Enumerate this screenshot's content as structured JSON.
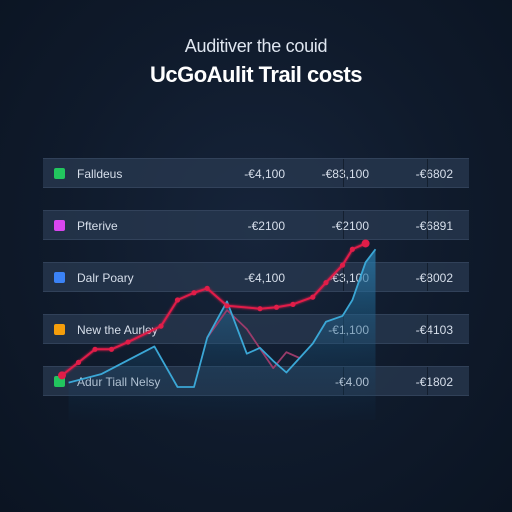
{
  "header": {
    "subtitle": "Auditiver the couid",
    "title": "UcGoAulit Trail costs"
  },
  "table": {
    "rows": [
      {
        "label": "Falldeus",
        "v1": "-€4,100",
        "v2": "-€83,100",
        "v3": "-€6802",
        "icon_color": "#22c55e"
      },
      {
        "label": "Pfterive",
        "v1": "-€2100",
        "v2": "-€2100",
        "v3": "-€6891",
        "icon_color": "#d946ef"
      },
      {
        "label": "Dalr Poary",
        "v1": "-€4,100",
        "v2": "-€3,100",
        "v3": "-€8002",
        "icon_color": "#3b82f6"
      },
      {
        "label": "New the Aurley",
        "v1": "",
        "v2": "-€1,100",
        "v3": "-€4103",
        "icon_color": "#f59e0b"
      },
      {
        "label": "Adur Tiall Nelsy",
        "v1": "",
        "v2": "-€4.00",
        "v3": "-€1802",
        "icon_color": "#22c55e"
      }
    ]
  },
  "chart_data": {
    "type": "line",
    "title": "",
    "xlabel": "",
    "ylabel": "",
    "ylim": [
      0,
      100
    ],
    "series": [
      {
        "color": "#e11d48",
        "values": [
          [
            0,
            8
          ],
          [
            5,
            17
          ],
          [
            10,
            26
          ],
          [
            15,
            26
          ],
          [
            20,
            31
          ],
          [
            30,
            42
          ],
          [
            35,
            60
          ],
          [
            40,
            65
          ],
          [
            44,
            68
          ],
          [
            50,
            56
          ],
          [
            60,
            54
          ],
          [
            65,
            55
          ],
          [
            70,
            57
          ],
          [
            76,
            62
          ],
          [
            80,
            72
          ],
          [
            85,
            84
          ],
          [
            88,
            95
          ],
          [
            92,
            99
          ]
        ]
      },
      {
        "color": "#3ba7d6",
        "values": [
          [
            2,
            3
          ],
          [
            12,
            9
          ],
          [
            28,
            28
          ],
          [
            35,
            0
          ],
          [
            40,
            0
          ],
          [
            44,
            34
          ],
          [
            50,
            59
          ],
          [
            56,
            23
          ],
          [
            60,
            27
          ],
          [
            64,
            18
          ],
          [
            68,
            10
          ],
          [
            76,
            30
          ],
          [
            80,
            45
          ],
          [
            85,
            49
          ],
          [
            88,
            60
          ],
          [
            92,
            86
          ],
          [
            95,
            95
          ]
        ]
      },
      {
        "color": "#9a3b6a",
        "values": [
          [
            44,
            34
          ],
          [
            50,
            53
          ],
          [
            56,
            40
          ],
          [
            64,
            13
          ],
          [
            68,
            24
          ],
          [
            72,
            20
          ]
        ]
      }
    ],
    "grid": false
  }
}
